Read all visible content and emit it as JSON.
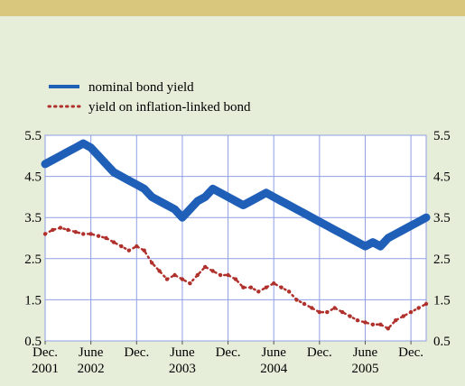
{
  "chart_data": {
    "type": "line",
    "title": "",
    "xlabel": "",
    "ylabel": "",
    "ylim": [
      0.5,
      5.5
    ],
    "yticks": [
      "0.5",
      "1.5",
      "2.5",
      "3.5",
      "4.5",
      "5.5"
    ],
    "ytick_values": [
      0.5,
      1.5,
      2.5,
      3.5,
      4.5,
      5.5
    ],
    "x_range": [
      "2001-12",
      "2005-12"
    ],
    "xticks": [
      {
        "month": "Dec.",
        "year": "2001",
        "t": 0
      },
      {
        "month": "June",
        "year": "2002",
        "t": 6
      },
      {
        "month": "Dec.",
        "year": "",
        "t": 12
      },
      {
        "month": "June",
        "year": "2003",
        "t": 18
      },
      {
        "month": "Dec.",
        "year": "",
        "t": 24
      },
      {
        "month": "June",
        "year": "2004",
        "t": 30
      },
      {
        "month": "Dec.",
        "year": "",
        "t": 36
      },
      {
        "month": "June",
        "year": "2005",
        "t": 42
      },
      {
        "month": "Dec.",
        "year": "",
        "t": 48
      }
    ],
    "grid": true,
    "legend": "top-left",
    "series": [
      {
        "name": "nominal bond yield",
        "color": "#1f5fb8",
        "style": "solid-band",
        "x": [
          0,
          1,
          2,
          3,
          4,
          5,
          6,
          7,
          8,
          9,
          10,
          11,
          12,
          13,
          14,
          15,
          16,
          17,
          18,
          19,
          20,
          21,
          22,
          23,
          24,
          25,
          26,
          27,
          28,
          29,
          30,
          31,
          32,
          33,
          34,
          35,
          36,
          37,
          38,
          39,
          40,
          41,
          42,
          43,
          44,
          45,
          46,
          47,
          48,
          49,
          50
        ],
        "values": [
          4.8,
          4.9,
          5.0,
          5.1,
          5.2,
          5.3,
          5.2,
          5.0,
          4.8,
          4.6,
          4.5,
          4.4,
          4.3,
          4.2,
          4.0,
          3.9,
          3.8,
          3.7,
          3.5,
          3.7,
          3.9,
          4.0,
          4.2,
          4.1,
          4.0,
          3.9,
          3.8,
          3.9,
          4.0,
          4.1,
          4.0,
          3.9,
          3.8,
          3.7,
          3.6,
          3.5,
          3.4,
          3.3,
          3.2,
          3.1,
          3.0,
          2.9,
          2.8,
          2.9,
          2.8,
          3.0,
          3.1,
          3.2,
          3.3,
          3.4,
          3.5
        ]
      },
      {
        "name": "yield on inflation-linked bond",
        "color": "#b0302c",
        "style": "dotted",
        "x": [
          0,
          1,
          2,
          3,
          4,
          5,
          6,
          7,
          8,
          9,
          10,
          11,
          12,
          13,
          14,
          15,
          16,
          17,
          18,
          19,
          20,
          21,
          22,
          23,
          24,
          25,
          26,
          27,
          28,
          29,
          30,
          31,
          32,
          33,
          34,
          35,
          36,
          37,
          38,
          39,
          40,
          41,
          42,
          43,
          44,
          45,
          46,
          47,
          48,
          49,
          50
        ],
        "values": [
          3.1,
          3.2,
          3.25,
          3.2,
          3.15,
          3.1,
          3.1,
          3.05,
          3.0,
          2.9,
          2.8,
          2.7,
          2.8,
          2.7,
          2.4,
          2.2,
          2.0,
          2.1,
          2.0,
          1.9,
          2.1,
          2.3,
          2.2,
          2.1,
          2.1,
          2.0,
          1.8,
          1.8,
          1.7,
          1.8,
          1.9,
          1.8,
          1.7,
          1.5,
          1.4,
          1.3,
          1.2,
          1.2,
          1.3,
          1.2,
          1.1,
          1.0,
          0.95,
          0.9,
          0.9,
          0.8,
          1.0,
          1.1,
          1.2,
          1.3,
          1.4
        ]
      }
    ]
  }
}
